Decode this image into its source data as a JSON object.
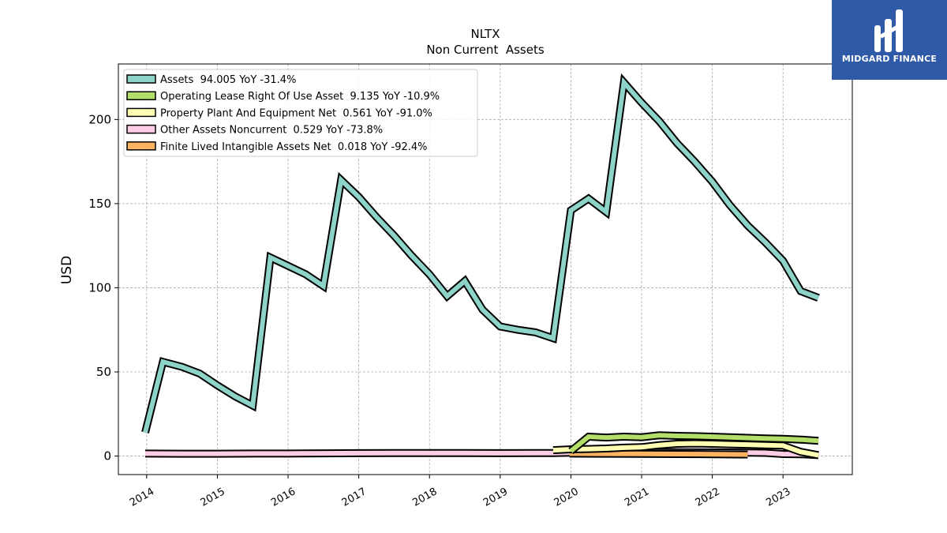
{
  "header": {
    "title": "NLTX",
    "subtitle": "Non Current  Assets"
  },
  "logo": {
    "text": "MIDGARD FINANCE",
    "bg": "#2f5aa8"
  },
  "chart_data": {
    "type": "line",
    "ylabel": "USD",
    "ylim": [
      -11,
      233
    ],
    "xlim": [
      2013.6,
      2023.98
    ],
    "yticks": [
      0,
      50,
      100,
      150,
      200
    ],
    "xticks": [
      "2014",
      "2015",
      "2016",
      "2017",
      "2018",
      "2019",
      "2020",
      "2021",
      "2022",
      "2023"
    ],
    "grid": true,
    "legend_position": "top-left",
    "series": [
      {
        "name": "Assets  94.005 YoY -31.4%",
        "color": "#8dd3c7",
        "points": [
          [
            2013.98,
            14
          ],
          [
            2014.23,
            56
          ],
          [
            2014.5,
            53
          ],
          [
            2014.75,
            49
          ],
          [
            2015.0,
            42
          ],
          [
            2015.25,
            35.5
          ],
          [
            2015.5,
            30
          ],
          [
            2015.75,
            118
          ],
          [
            2016.0,
            113
          ],
          [
            2016.25,
            108
          ],
          [
            2016.5,
            101
          ],
          [
            2016.75,
            164
          ],
          [
            2017.0,
            154
          ],
          [
            2017.25,
            142
          ],
          [
            2017.5,
            131
          ],
          [
            2017.75,
            119
          ],
          [
            2018.0,
            108
          ],
          [
            2018.25,
            95
          ],
          [
            2018.5,
            104
          ],
          [
            2018.75,
            87
          ],
          [
            2019.0,
            77
          ],
          [
            2019.25,
            75
          ],
          [
            2019.5,
            73.5
          ],
          [
            2019.75,
            70
          ],
          [
            2020.0,
            146
          ],
          [
            2020.25,
            153
          ],
          [
            2020.5,
            145
          ],
          [
            2020.75,
            222
          ],
          [
            2021.0,
            210
          ],
          [
            2021.25,
            199
          ],
          [
            2021.5,
            186
          ],
          [
            2021.75,
            175
          ],
          [
            2022.0,
            163
          ],
          [
            2022.25,
            149
          ],
          [
            2022.5,
            137
          ],
          [
            2022.75,
            127
          ],
          [
            2023.0,
            116
          ],
          [
            2023.25,
            98
          ],
          [
            2023.5,
            94
          ]
        ]
      },
      {
        "name": "Operating Lease Right Of Use Asset  9.135 YoY -10.9%",
        "color": "#b3de69",
        "points": [
          [
            2020.0,
            3
          ],
          [
            2020.25,
            11.5
          ],
          [
            2020.5,
            11
          ],
          [
            2020.75,
            11.5
          ],
          [
            2021.0,
            11.2
          ],
          [
            2021.25,
            12.3
          ],
          [
            2021.5,
            12
          ],
          [
            2021.75,
            11.8
          ],
          [
            2022.0,
            11.5
          ],
          [
            2022.25,
            11.2
          ],
          [
            2022.5,
            10.8
          ],
          [
            2022.75,
            10.5
          ],
          [
            2023.0,
            10.2
          ],
          [
            2023.25,
            9.8
          ],
          [
            2023.5,
            9.1
          ]
        ]
      },
      {
        "name": "Property Plant And Equipment Net  0.561 YoY -91.0%",
        "color": "#ffffb3",
        "points": [
          [
            2019.75,
            3.5
          ],
          [
            2020.0,
            4
          ],
          [
            2020.25,
            4.2
          ],
          [
            2020.5,
            4.5
          ],
          [
            2020.75,
            5
          ],
          [
            2021.0,
            5.3
          ],
          [
            2021.25,
            6.5
          ],
          [
            2021.5,
            7.3
          ],
          [
            2021.75,
            7.5
          ],
          [
            2022.0,
            7.3
          ],
          [
            2022.25,
            7
          ],
          [
            2022.5,
            6.8
          ],
          [
            2022.75,
            6.5
          ],
          [
            2023.0,
            6.2
          ],
          [
            2023.25,
            2.5
          ],
          [
            2023.5,
            0.56
          ]
        ]
      },
      {
        "name": "Other Assets Noncurrent  0.529 YoY -73.8%",
        "color": "#fccde5",
        "points": [
          [
            2013.98,
            1.5
          ],
          [
            2014.5,
            1.4
          ],
          [
            2015.0,
            1.4
          ],
          [
            2015.5,
            1.5
          ],
          [
            2016.0,
            1.5
          ],
          [
            2016.5,
            1.6
          ],
          [
            2017.0,
            1.7
          ],
          [
            2017.5,
            1.8
          ],
          [
            2018.0,
            1.8
          ],
          [
            2018.5,
            1.8
          ],
          [
            2019.0,
            1.7
          ],
          [
            2019.5,
            1.8
          ],
          [
            2019.75,
            1.8
          ],
          [
            2020.0,
            2
          ],
          [
            2020.5,
            2.2
          ],
          [
            2021.0,
            2.3
          ],
          [
            2021.5,
            2.3
          ],
          [
            2022.0,
            2.2
          ],
          [
            2022.5,
            2.0
          ],
          [
            2022.75,
            1.9
          ],
          [
            2023.0,
            1.2
          ],
          [
            2023.25,
            1.1
          ],
          [
            2023.5,
            0.53
          ]
        ]
      },
      {
        "name": "Finite Lived Intangible Assets Net  0.018 YoY -92.4%",
        "color": "#fdb462",
        "points": [
          [
            2019.98,
            1.5
          ],
          [
            2020.5,
            1.4
          ],
          [
            2021.0,
            1.3
          ],
          [
            2021.5,
            1.2
          ],
          [
            2022.0,
            1.1
          ],
          [
            2022.5,
            0.9
          ]
        ]
      }
    ]
  }
}
